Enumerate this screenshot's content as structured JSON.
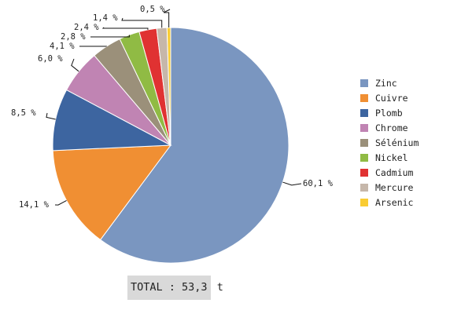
{
  "chart_data": {
    "type": "pie",
    "categories": [
      "Zinc",
      "Cuivre",
      "Plomb",
      "Chrome",
      "Sélénium",
      "Nickel",
      "Cadmium",
      "Mercure",
      "Arsenic"
    ],
    "values": [
      60.1,
      14.1,
      8.5,
      6.0,
      4.1,
      2.8,
      2.4,
      1.4,
      0.5
    ],
    "data_labels": [
      "60,1 %",
      "14,1 %",
      "8,5 %",
      "6,0 %",
      "4,1 %",
      "2,8 %",
      "2,4 %",
      "1,4 %",
      "0,5 %"
    ],
    "colors": [
      "#7a96c0",
      "#f08f33",
      "#3d65a0",
      "#c084b3",
      "#9b907a",
      "#90bb44",
      "#e03232",
      "#c6b7aa",
      "#f9cc33"
    ],
    "legend_position": "right",
    "start_angle": "12 o'clock, clockwise"
  },
  "total": {
    "label_box": "TOTAL : 53,3",
    "unit": "t"
  }
}
